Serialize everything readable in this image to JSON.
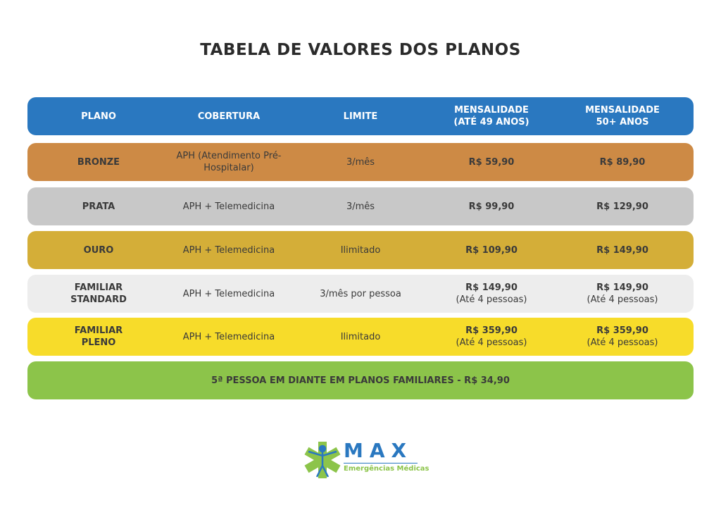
{
  "title": "TABELA DE VALORES DOS PLANOS",
  "header": {
    "plano": "PLANO",
    "cobertura": "COBERTURA",
    "limite": "LIMITE",
    "mens1": "MENSALIDADE",
    "mens1b": "(ATÉ 49 ANOS)",
    "mens2": "MENSALIDADE",
    "mens2b": "50+ ANOS"
  },
  "rows": [
    {
      "plano": "BRONZE",
      "cobertura": "APH (Atendimento Pré-Hospitalar)",
      "limite": "3/mês",
      "price1": "R$ 59,90",
      "price2": "R$ 89,90",
      "color": "#cd8a45"
    },
    {
      "plano": "PRATA",
      "cobertura": "APH + Telemedicina",
      "limite": "3/mês",
      "price1": "R$ 99,90",
      "price2": "R$ 129,90",
      "color": "#c8c8c8"
    },
    {
      "plano": "OURO",
      "cobertura": "APH + Telemedicina",
      "limite": "Ilimitado",
      "price1": "R$ 109,90",
      "price2": "R$ 149,90",
      "color": "#d4ae38"
    },
    {
      "plano": "FAMILIAR STANDARD",
      "cobertura": "APH + Telemedicina",
      "limite": "3/mês por pessoa",
      "price1": "R$ 149,90",
      "price1_note": "(Até 4 pessoas)",
      "price2": "R$ 149,90",
      "price2_note": "(Até 4 pessoas)",
      "color": "#ededed"
    },
    {
      "plano": "FAMILIAR PLENO",
      "cobertura": "APH + Telemedicina",
      "limite": "Ilimitado",
      "price1": "R$ 359,90",
      "price1_note": "(Até 4 pessoas)",
      "price2": "R$ 359,90",
      "price2_note": "(Até 4 pessoas)",
      "color": "#f7dc2a"
    }
  ],
  "footer_note": "5ª PESSOA EM DIANTE EM PLANOS FAMILIARES - R$ 34,90",
  "colors": {
    "header": "#2a78c0",
    "footer": "#8cc44a"
  },
  "logo": {
    "name": "MAX",
    "tagline": "Emergências Médicas"
  }
}
